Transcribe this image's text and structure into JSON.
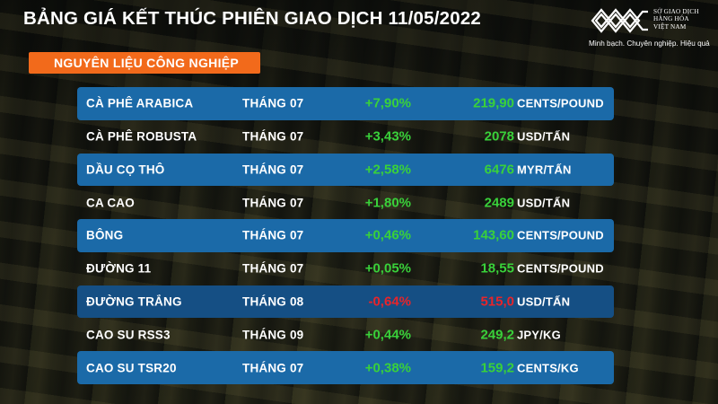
{
  "header": {
    "title": "BẢNG GIÁ KẾT THÚC PHIÊN GIAO DỊCH 11/05/2022"
  },
  "logo": {
    "name_line1": "SỞ GIAO DỊCH",
    "name_line2": "HÀNG HÓA",
    "name_line3": "VIỆT NAM",
    "tagline": "Minh bạch. Chuyên nghiệp. Hiệu quả",
    "icon": "mxv-logo-icon"
  },
  "category": {
    "label": "NGUYÊN LIỆU CÔNG NGHIỆP"
  },
  "colors": {
    "row_highlight": "#1b6aa8",
    "category_bg": "#f26a1b",
    "positive": "#39d13a",
    "negative": "#e8242a"
  },
  "rows": [
    {
      "name": "CÀ PHÊ ARABICA",
      "month": "THÁNG 07",
      "change": "+7,90%",
      "price": "219,90",
      "unit": "CENTS/POUND",
      "direction": "up",
      "highlight": true
    },
    {
      "name": "CÀ PHÊ ROBUSTA",
      "month": "THÁNG 07",
      "change": "+3,43%",
      "price": "2078",
      "unit": "USD/TẤN",
      "direction": "up",
      "highlight": false
    },
    {
      "name": "DẦU CỌ THÔ",
      "month": "THÁNG 07",
      "change": "+2,58%",
      "price": "6476",
      "unit": "MYR/TẤN",
      "direction": "up",
      "highlight": true
    },
    {
      "name": "CA CAO",
      "month": "THÁNG 07",
      "change": "+1,80%",
      "price": "2489",
      "unit": "USD/TẤN",
      "direction": "up",
      "highlight": false
    },
    {
      "name": "BÔNG",
      "month": "THÁNG 07",
      "change": "+0,46%",
      "price": "143,60",
      "unit": "CENTS/POUND",
      "direction": "up",
      "highlight": true
    },
    {
      "name": "ĐƯỜNG 11",
      "month": "THÁNG 07",
      "change": "+0,05%",
      "price": "18,55",
      "unit": "CENTS/POUND",
      "direction": "up",
      "highlight": false
    },
    {
      "name": "ĐƯỜNG TRẮNG",
      "month": "THÁNG 08",
      "change": "-0,64%",
      "price": "515,0",
      "unit": "USD/TẤN",
      "direction": "down",
      "highlight": true
    },
    {
      "name": "CAO SU RSS3",
      "month": "THÁNG 09",
      "change": "+0,44%",
      "price": "249,2",
      "unit": "JPY/KG",
      "direction": "up",
      "highlight": false
    },
    {
      "name": "CAO SU TSR20",
      "month": "THÁNG 07",
      "change": "+0,38%",
      "price": "159,2",
      "unit": "CENTS/KG",
      "direction": "up",
      "highlight": true
    }
  ]
}
